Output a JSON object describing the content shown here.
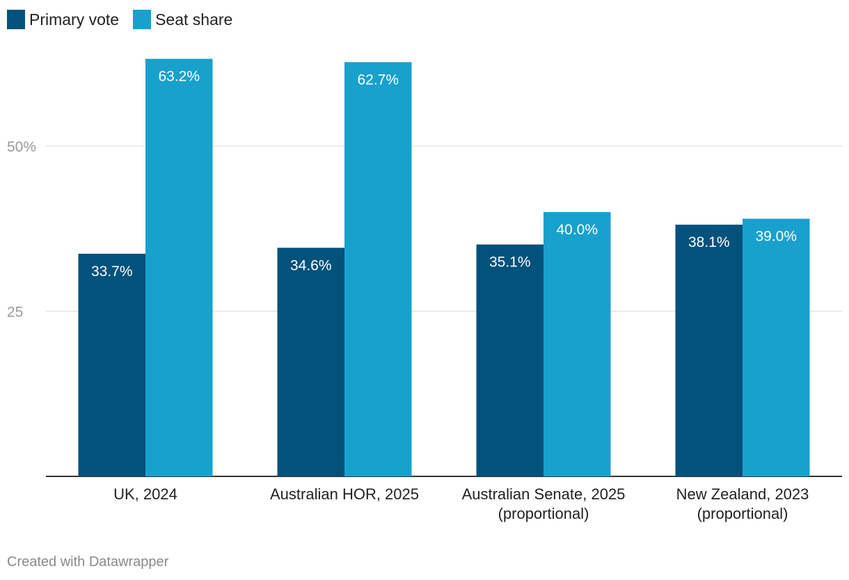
{
  "chart_data": {
    "type": "bar",
    "categories": [
      [
        "UK, 2024"
      ],
      [
        "Australian HOR, 2025"
      ],
      [
        "Australian Senate, 2025",
        "(proportional)"
      ],
      [
        "New Zealand, 2023",
        "(proportional)"
      ]
    ],
    "series": [
      {
        "name": "Primary vote",
        "color": "#03527b",
        "values": [
          33.7,
          34.6,
          35.1,
          38.1
        ],
        "labels": [
          "33.7%",
          "34.6%",
          "35.1%",
          "38.1%"
        ]
      },
      {
        "name": "Seat share",
        "color": "#18a1cd",
        "values": [
          63.2,
          62.7,
          40.0,
          39.0
        ],
        "labels": [
          "63.2%",
          "62.7%",
          "40.0%",
          "39.0%"
        ]
      }
    ],
    "yticks": [
      {
        "value": 25,
        "label": "25"
      },
      {
        "value": 50,
        "label": "50%"
      }
    ],
    "ylim": [
      0,
      64
    ],
    "grid": true,
    "legend": "top-left",
    "title": "",
    "xlabel": "",
    "ylabel": ""
  },
  "footer": {
    "credit": "Created with Datawrapper"
  }
}
